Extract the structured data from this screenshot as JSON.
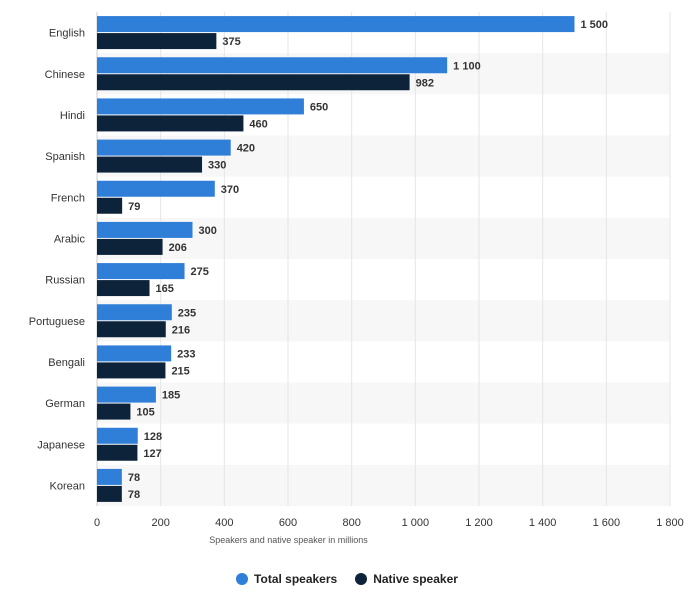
{
  "chart_data": {
    "type": "bar",
    "orientation": "horizontal",
    "categories": [
      "English",
      "Chinese",
      "Hindi",
      "Spanish",
      "French",
      "Arabic",
      "Russian",
      "Portuguese",
      "Bengali",
      "German",
      "Japanese",
      "Korean"
    ],
    "series": [
      {
        "name": "Total speakers",
        "color": "#2f7ed8",
        "values": [
          1500,
          1100,
          650,
          420,
          370,
          300,
          275,
          235,
          233,
          185,
          128,
          78
        ]
      },
      {
        "name": "Native speaker",
        "color": "#0d233a",
        "values": [
          375,
          982,
          460,
          330,
          79,
          206,
          165,
          216,
          215,
          105,
          127,
          78
        ]
      }
    ],
    "value_labels": [
      [
        "1 500",
        "1 100",
        "650",
        "420",
        "370",
        "300",
        "275",
        "235",
        "233",
        "185",
        "128",
        "78"
      ],
      [
        "375",
        "982",
        "460",
        "330",
        "79",
        "206",
        "165",
        "216",
        "215",
        "105",
        "127",
        "78"
      ]
    ],
    "xlabel": "Speakers and native speaker in millions",
    "ylabel": "",
    "xlim": [
      0,
      1800
    ],
    "xticks": [
      0,
      200,
      400,
      600,
      800,
      1000,
      1200,
      1400,
      1600,
      1800
    ],
    "xtick_labels": [
      "0",
      "200",
      "400",
      "600",
      "800",
      "1 000",
      "1 200",
      "1 400",
      "1 600",
      "1 800"
    ],
    "grid": "vertical",
    "legend": "bottom-center"
  }
}
